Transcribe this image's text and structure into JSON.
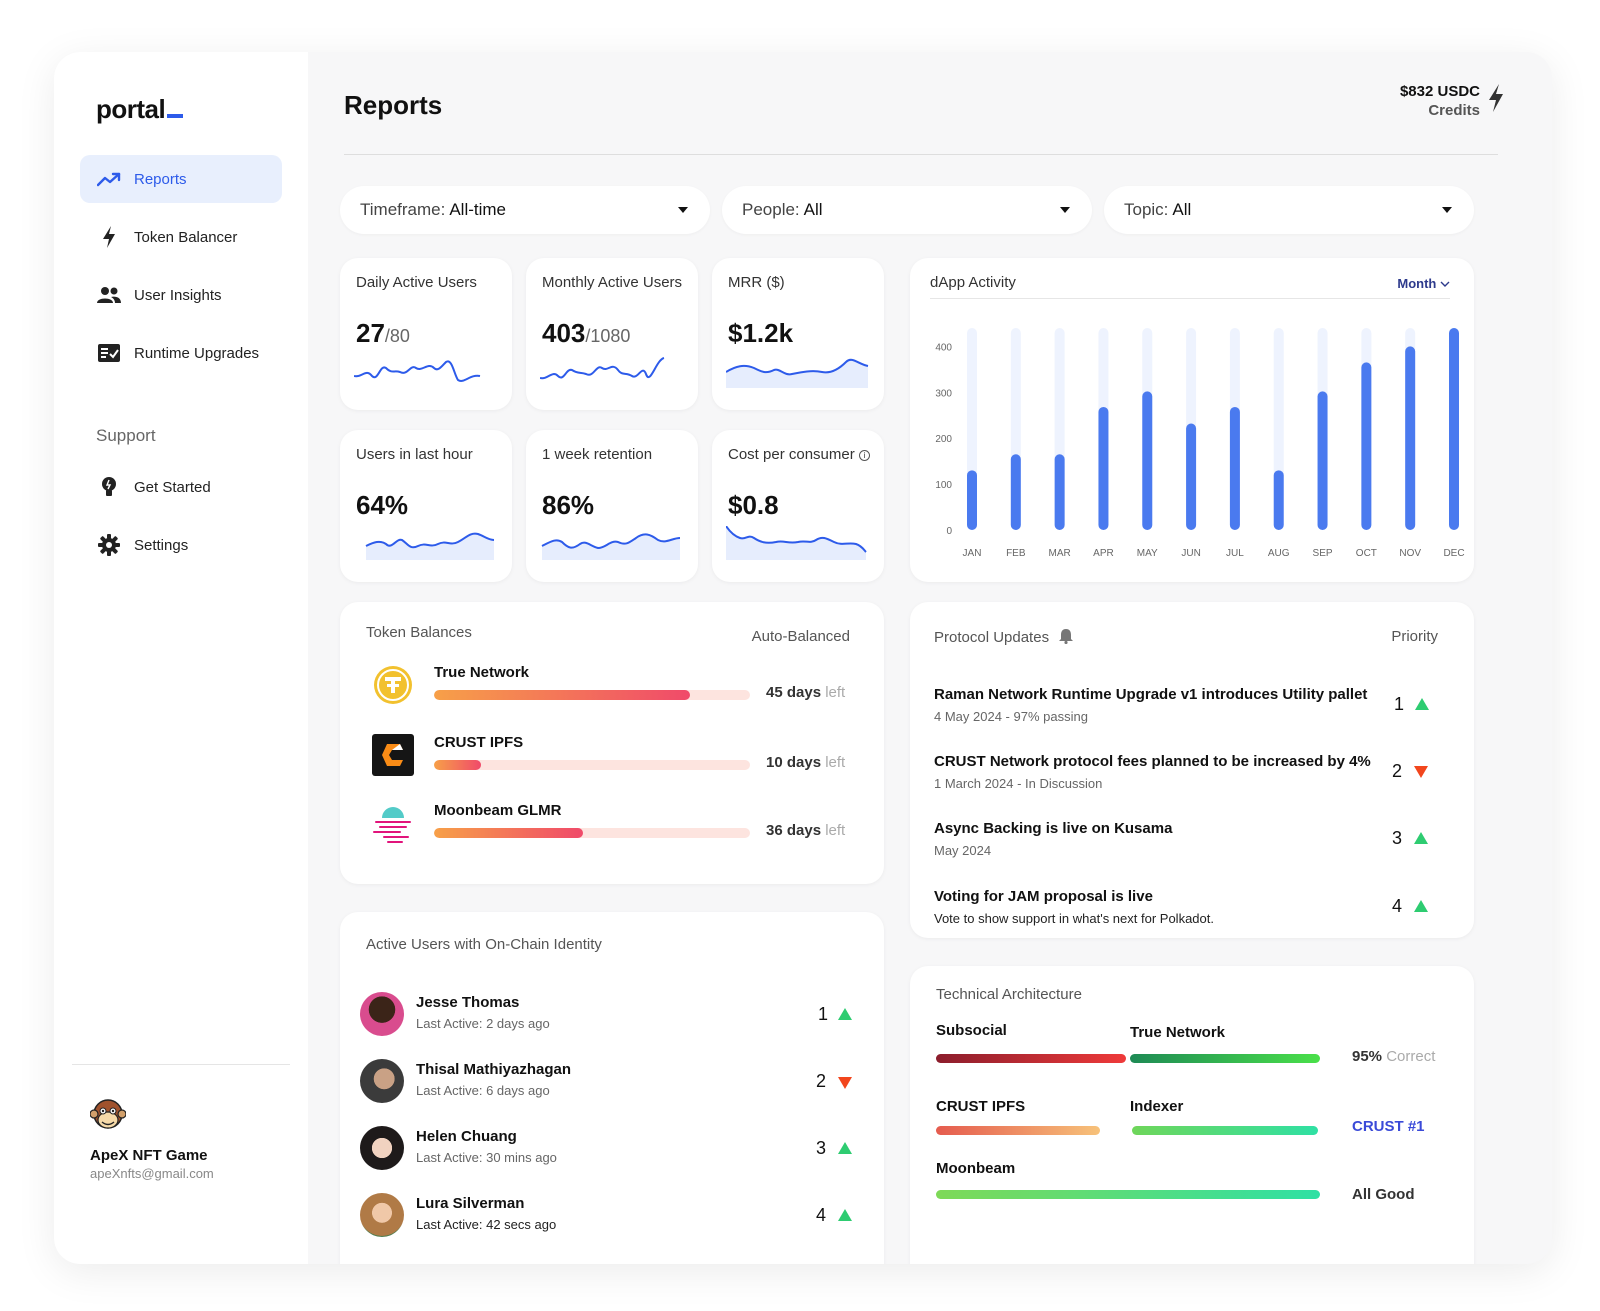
{
  "sidebar": {
    "logo": "portal",
    "nav": [
      {
        "label": "Reports",
        "icon": "trend-up-icon"
      },
      {
        "label": "Token Balancer",
        "icon": "bolt-icon"
      },
      {
        "label": "User Insights",
        "icon": "users-icon"
      },
      {
        "label": "Runtime Upgrades",
        "icon": "checklist-icon"
      }
    ],
    "support_label": "Support",
    "support_nav": [
      {
        "label": "Get Started",
        "icon": "lightbulb-icon"
      },
      {
        "label": "Settings",
        "icon": "gear-icon"
      }
    ],
    "profile": {
      "name": "ApeX NFT Game",
      "email": "apeXnfts@gmail.com"
    }
  },
  "header": {
    "title": "Reports",
    "credits_amount": "$832 USDC",
    "credits_label": "Credits"
  },
  "filters": [
    {
      "label": "Timeframe:",
      "value": "All-time"
    },
    {
      "label": "People:",
      "value": "All"
    },
    {
      "label": "Topic:",
      "value": "All"
    }
  ],
  "stats": [
    {
      "title": "Daily Active Users",
      "value": "27",
      "sub": "/80"
    },
    {
      "title": "Monthly Active Users",
      "value": "403",
      "sub": "/1080"
    },
    {
      "title": "MRR ($)",
      "value": "$1.2k",
      "sub": ""
    },
    {
      "title": "Users in last hour",
      "value": "64%",
      "sub": ""
    },
    {
      "title": "1 week retention",
      "value": "86%",
      "sub": ""
    },
    {
      "title": "Cost per consumer",
      "value": "$0.8",
      "sub": ""
    }
  ],
  "chart_data": {
    "type": "bar",
    "title": "dApp Activity",
    "period_select": "Month",
    "categories": [
      "JAN",
      "FEB",
      "MAR",
      "APR",
      "MAY",
      "JUN",
      "JUL",
      "AUG",
      "SEP",
      "OCT",
      "NOV",
      "DEC"
    ],
    "values": [
      130,
      165,
      165,
      268,
      302,
      232,
      268,
      130,
      302,
      365,
      400,
      440
    ],
    "ylim": [
      0,
      440
    ],
    "yticks": [
      0,
      100,
      200,
      300,
      400
    ],
    "bar_color": "#4a7aef",
    "track_color": "#eef3fe"
  },
  "token_balances": {
    "title": "Token Balances",
    "mode": "Auto-Balanced",
    "items": [
      {
        "name": "True Network",
        "fill": 0.81,
        "days": "45 days",
        "left": "left"
      },
      {
        "name": "CRUST IPFS",
        "fill": 0.15,
        "days": "10 days",
        "left": "left"
      },
      {
        "name": "Moonbeam GLMR",
        "fill": 0.47,
        "days": "36 days",
        "left": "left"
      }
    ]
  },
  "protocol_updates": {
    "title": "Protocol Updates",
    "priority_label": "Priority",
    "items": [
      {
        "title": "Raman Network Runtime Upgrade v1 introduces Utility pallet",
        "sub": "4 May 2024 - 97% passing",
        "rank": "1",
        "trend": "up"
      },
      {
        "title": "CRUST Network protocol fees planned to be increased by 4%",
        "sub": "1 March 2024 - In Discussion",
        "rank": "2",
        "trend": "down"
      },
      {
        "title": "Async Backing is live on Kusama",
        "sub": "May 2024",
        "rank": "3",
        "trend": "up"
      },
      {
        "title": "Voting for JAM proposal is live",
        "sub": "Vote to show support in what's next for Polkadot.",
        "rank": "4",
        "trend": "up"
      }
    ]
  },
  "active_users": {
    "title": "Active Users with On-Chain Identity",
    "items": [
      {
        "name": "Jesse Thomas",
        "sub": "Last Active: 2 days ago",
        "rank": "1",
        "trend": "up"
      },
      {
        "name": "Thisal Mathiyazhagan",
        "sub": "Last Active: 6 days ago",
        "rank": "2",
        "trend": "down"
      },
      {
        "name": "Helen Chuang",
        "sub": "Last Active: 30 mins ago",
        "rank": "3",
        "trend": "up"
      },
      {
        "name": "Lura Silverman",
        "sub": "Last Active: 42 secs ago",
        "rank": "4",
        "trend": "up"
      }
    ]
  },
  "tech_arch": {
    "title": "Technical Architecture",
    "labels": {
      "subsocial": "Subsocial",
      "true_network": "True Network",
      "crust": "CRUST IPFS",
      "indexer": "Indexer",
      "moonbeam": "Moonbeam"
    },
    "row1_value": "95%",
    "row1_suffix": "Correct",
    "row2_value": "CRUST #1",
    "row3_value": "All Good"
  }
}
